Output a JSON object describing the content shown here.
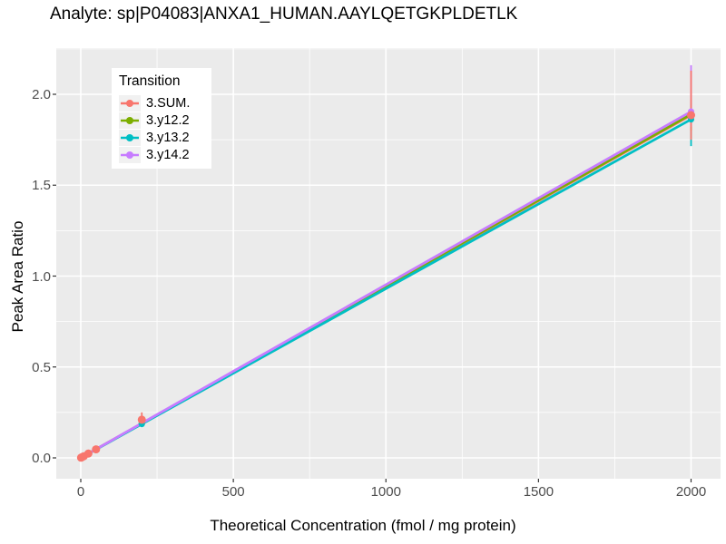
{
  "chart_data": {
    "type": "line",
    "title": "Analyte: sp|P04083|ANXA1_HUMAN.AAYLQETGKPLDETLK",
    "xlabel": "Theoretical Concentration (fmol / mg protein)",
    "ylabel": "Peak Area Ratio",
    "xlim": [
      -80,
      2095
    ],
    "ylim": [
      -0.11,
      2.25
    ],
    "x_ticks": [
      {
        "value": 0,
        "label": "0"
      },
      {
        "value": 500,
        "label": "500"
      },
      {
        "value": 1000,
        "label": "1000"
      },
      {
        "value": 1500,
        "label": "1500"
      },
      {
        "value": 2000,
        "label": "2000"
      }
    ],
    "y_ticks": [
      {
        "value": 0.0,
        "label": "0.0"
      },
      {
        "value": 0.5,
        "label": "0.5"
      },
      {
        "value": 1.0,
        "label": "1.0"
      },
      {
        "value": 1.5,
        "label": "1.5"
      },
      {
        "value": 2.0,
        "label": "2.0"
      }
    ],
    "x_minor": [
      250,
      750,
      1250,
      1750
    ],
    "y_minor": [
      0.25,
      0.75,
      1.25,
      1.75,
      2.25
    ],
    "grid": "major and minor white gridlines on grey panel",
    "panel_bg": "#EBEBEB",
    "gridline_color": "#FFFFFF",
    "tick_label_color": "#4D4D4D",
    "legend_title": "Transition",
    "legend_position": "top-left-inside",
    "series": [
      {
        "name": "3.SUM.",
        "color": "#F8766D",
        "x": [
          1,
          5,
          10,
          25,
          50,
          200,
          2000
        ],
        "y": [
          0.001,
          0.005,
          0.009,
          0.024,
          0.047,
          0.21,
          1.885
        ],
        "line": [
          [
            0,
            0
          ],
          [
            2000,
            1.885
          ]
        ],
        "errorbars": [
          {
            "x": 200,
            "ymin": 0.17,
            "ymax": 0.25
          },
          {
            "x": 2000,
            "ymin": 1.75,
            "ymax": 2.13
          }
        ],
        "point_radius": 4.5
      },
      {
        "name": "3.y12.2",
        "color": "#7CAE00",
        "x": [
          1,
          5,
          10,
          25,
          50,
          200,
          2000
        ],
        "y": [
          0.001,
          0.005,
          0.009,
          0.024,
          0.047,
          0.189,
          1.89
        ],
        "line": [
          [
            0,
            0
          ],
          [
            2000,
            1.89
          ]
        ],
        "errorbars": [
          {
            "x": 2000,
            "ymin": 1.8,
            "ymax": 1.97
          }
        ],
        "point_radius": 3.5
      },
      {
        "name": "3.y13.2",
        "color": "#00BFC4",
        "x": [
          1,
          5,
          10,
          25,
          50,
          200,
          2000
        ],
        "y": [
          0.001,
          0.005,
          0.009,
          0.023,
          0.046,
          0.186,
          1.862
        ],
        "line": [
          [
            0,
            0
          ],
          [
            2000,
            1.862
          ]
        ],
        "errorbars": [
          {
            "x": 2000,
            "ymin": 1.715,
            "ymax": 1.95
          }
        ],
        "point_radius": 3.5
      },
      {
        "name": "3.y14.2",
        "color": "#C77CFF",
        "x": [
          1,
          5,
          10,
          25,
          50,
          200,
          2000
        ],
        "y": [
          0.001,
          0.005,
          0.01,
          0.024,
          0.048,
          0.19,
          1.905
        ],
        "line": [
          [
            0,
            0
          ],
          [
            2000,
            1.905
          ]
        ],
        "errorbars": [
          {
            "x": 2000,
            "ymin": 1.82,
            "ymax": 2.16
          }
        ],
        "point_radius": 3.5
      }
    ]
  }
}
